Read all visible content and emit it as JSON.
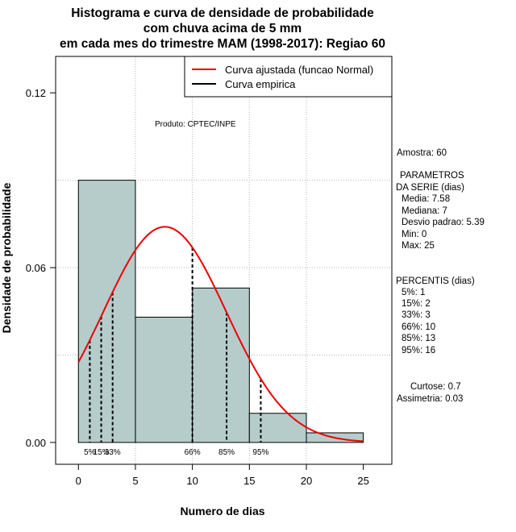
{
  "chart_data": {
    "type": "bar",
    "title": [
      "Histograma e curva de densidade de probabilidade",
      "com chuva acima de 5 mm",
      "em cada mes do trimestre MAM (1998-2017): Regiao 60"
    ],
    "xlabel": "Numero de dias",
    "ylabel": "Densidade de probabilidade",
    "xlim": [
      -2,
      27.5
    ],
    "ylim": [
      -0.0075,
      0.1325
    ],
    "x_ticks": [
      0,
      5,
      10,
      15,
      20,
      25
    ],
    "y_ticks": [
      0.0,
      0.06,
      0.12
    ],
    "x_tick_labels": [
      "0",
      "5",
      "10",
      "15",
      "20",
      "25"
    ],
    "y_tick_labels": [
      "0.00",
      "0.06",
      "0.12"
    ],
    "grid_x": [
      5,
      10,
      15,
      20
    ],
    "grid_y": [
      0.03,
      0.06,
      0.09
    ],
    "bins": [
      {
        "from": 0,
        "to": 5,
        "density": 0.09
      },
      {
        "from": 5,
        "to": 10,
        "density": 0.043
      },
      {
        "from": 10,
        "to": 15,
        "density": 0.053
      },
      {
        "from": 15,
        "to": 20,
        "density": 0.01
      },
      {
        "from": 20,
        "to": 25,
        "density": 0.0033
      }
    ],
    "normal_fit": {
      "mean": 7.58,
      "sd": 5.39,
      "x_from": 0,
      "x_to": 25
    },
    "percentile_lines": [
      {
        "x": 1,
        "label": "5%"
      },
      {
        "x": 2,
        "label": "15%"
      },
      {
        "x": 3,
        "label": "33%"
      },
      {
        "x": 10,
        "label": "66%"
      },
      {
        "x": 13,
        "label": "85%"
      },
      {
        "x": 16,
        "label": "95%"
      }
    ],
    "annotation": "Produto: CPTEC/INPE",
    "legend": {
      "position": "top-right",
      "entries": [
        {
          "label": "Curva ajustada (funcao Normal)",
          "color": "#ee0000"
        },
        {
          "label": "Curva empirica",
          "color": "#000000"
        }
      ]
    },
    "colors": {
      "bar_fill": "#b5cccb",
      "fit_curve": "#ee0000",
      "grid": "#b4b4b4"
    }
  },
  "stats_panel": {
    "amostra": "Amostra: 60",
    "parametros_title_1": "PARAMETROS",
    "parametros_title_2": "DA SERIE (dias)",
    "media": "Media: 7.58",
    "mediana": "Mediana: 7",
    "desvio": "Desvio padrao: 5.39",
    "min": "Min: 0",
    "max": "Max: 25",
    "percentis_title": "PERCENTIS (dias)",
    "percentis": [
      "5%: 1",
      "15%: 2",
      "33%: 3",
      "66%: 10",
      "85%: 13",
      "95%: 16"
    ],
    "curtose": "Curtose: 0.7",
    "assimetria": "Assimetria: 0.03"
  }
}
